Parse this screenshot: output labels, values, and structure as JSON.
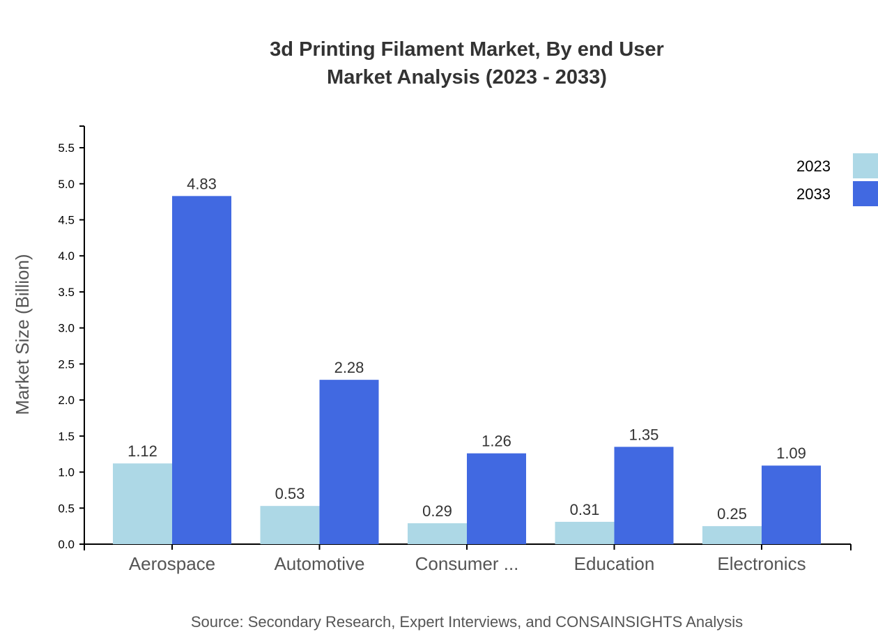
{
  "chart_data": {
    "type": "bar",
    "title": "3d Printing Filament Market, By end User",
    "subtitle": "Market Analysis (2023 - 2033)",
    "xlabel": "",
    "ylabel": "Market Size (Billion)",
    "source": "Source: Secondary Research, Expert Interviews, and CONSAINSIGHTS Analysis",
    "categories": [
      "Aerospace",
      "Automotive",
      "Consumer ...",
      "Education",
      "Electronics"
    ],
    "series": [
      {
        "name": "2023",
        "color": "#add8e6",
        "values": [
          1.12,
          0.53,
          0.29,
          0.31,
          0.25
        ]
      },
      {
        "name": "2033",
        "color": "#4169e1",
        "values": [
          4.83,
          2.28,
          1.26,
          1.35,
          1.09
        ]
      }
    ],
    "ylim": [
      0,
      5.8
    ],
    "yticks": [
      "0.0",
      "0.5",
      "1.0",
      "1.5",
      "2.0",
      "2.5",
      "3.0",
      "3.5",
      "4.0",
      "4.5",
      "5.0",
      "5.5"
    ],
    "grid": false,
    "legend": "top-right"
  }
}
